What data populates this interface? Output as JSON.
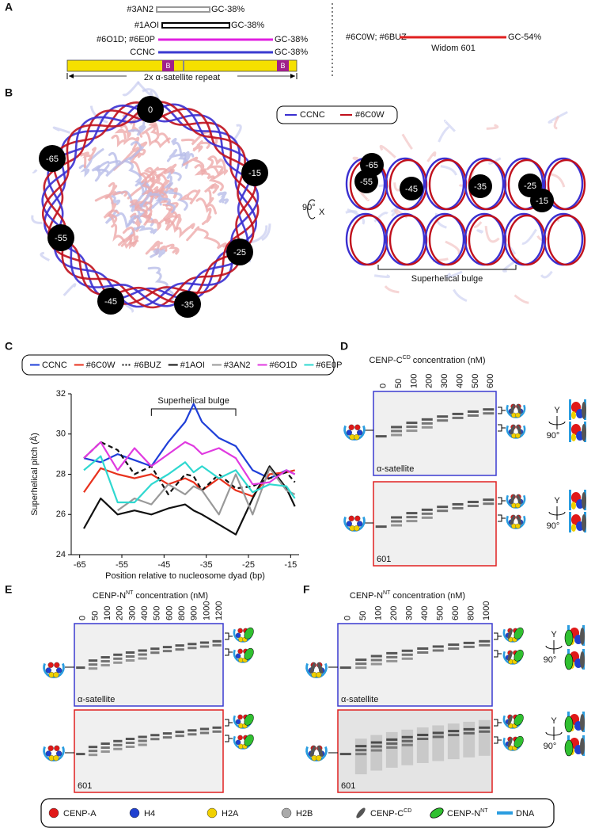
{
  "panel_labels": [
    "A",
    "B",
    "C",
    "D",
    "E",
    "F"
  ],
  "panel_a": {
    "constructs": [
      {
        "name": "#3AN2",
        "gc": "GC-38%"
      },
      {
        "name": "#1AOI",
        "gc": "GC-38%"
      },
      {
        "name": "#6O1D; #6E0P",
        "gc": "GC-38%"
      },
      {
        "name": "CCNC",
        "gc": "GC-38%"
      }
    ],
    "box_label": "B",
    "repeat_label": "2x α-satellite repeat",
    "widom": {
      "name": "#6C0W; #6BUZ",
      "gc": "GC-54%",
      "label": "Widom 601"
    }
  },
  "panel_b": {
    "legend": [
      "CCNC",
      "#6C0W"
    ],
    "top_view_positions": [
      "0",
      "-15",
      "-25",
      "-35",
      "-45",
      "-55",
      "-65"
    ],
    "side_view_positions": [
      "-65",
      "-55",
      "-45",
      "-35",
      "-25",
      "-15"
    ],
    "rotation": "90°",
    "axis": "X",
    "annotation": "Superhelical bulge"
  },
  "chart_data": {
    "type": "line",
    "xlabel": "Position relative to nucleosome dyad (bp)",
    "ylabel": "Superhelical pitch (Å)",
    "annotation": "Superhelical bulge",
    "legend": "top",
    "x": [
      -64,
      -60,
      -56,
      -52,
      -48,
      -44,
      -40,
      -38,
      -36,
      -32,
      -28,
      -24,
      -20,
      -16,
      -14
    ],
    "series": [
      {
        "name": "CCNC",
        "color": "#1f3fd8",
        "values": [
          28.8,
          28.6,
          29.0,
          28.7,
          28.4,
          29.6,
          30.6,
          31.5,
          30.6,
          29.8,
          29.4,
          28.2,
          27.8,
          28.2,
          28.0
        ]
      },
      {
        "name": "#6C0W",
        "color": "#e8321e",
        "values": [
          27.1,
          28.3,
          28.0,
          27.8,
          28.0,
          27.5,
          27.8,
          27.6,
          27.2,
          27.8,
          27.2,
          26.9,
          28.0,
          28.1,
          28.2
        ]
      },
      {
        "name": "#6BUZ",
        "color": "#111111",
        "dash": true,
        "values": [
          28.8,
          29.6,
          29.2,
          28.0,
          28.4,
          27.0,
          28.0,
          27.9,
          27.2,
          28.0,
          27.3,
          27.4,
          27.8,
          28.1,
          27.6
        ]
      },
      {
        "name": "#1AOI",
        "color": "#111111",
        "values": [
          25.3,
          26.8,
          26.0,
          26.2,
          26.0,
          26.3,
          26.5,
          26.2,
          26.0,
          25.5,
          25.0,
          26.8,
          28.4,
          27.3,
          26.4
        ]
      },
      {
        "name": "#3AN2",
        "color": "#999999",
        "values": [
          null,
          null,
          26.2,
          26.8,
          26.5,
          27.5,
          27.0,
          27.4,
          27.2,
          26.0,
          28.0,
          26.0,
          28.3,
          27.2,
          27.0
        ]
      },
      {
        "name": "#6O1D",
        "color": "#e03ae0",
        "values": [
          28.8,
          29.6,
          28.2,
          29.3,
          28.4,
          29.0,
          29.6,
          29.4,
          29.0,
          29.3,
          28.8,
          27.5,
          27.6,
          28.2,
          28.0
        ]
      },
      {
        "name": "#6E0P",
        "color": "#2fd8d0",
        "values": [
          28.2,
          28.9,
          26.6,
          26.6,
          27.5,
          28.0,
          28.6,
          28.1,
          28.4,
          27.8,
          28.2,
          27.1,
          27.5,
          27.4,
          26.8
        ]
      }
    ],
    "xlim": [
      -67,
      -13
    ],
    "xticks": [
      -65,
      -55,
      -45,
      -35,
      -25,
      -15
    ],
    "ylim": [
      24,
      32
    ],
    "yticks": [
      24,
      26,
      28,
      30,
      32
    ]
  },
  "panel_d": {
    "title": {
      "prefix": "CENP-C",
      "sup": "CD",
      "suffix": "concentration (nM)"
    },
    "lanes": [
      "0",
      "50",
      "100",
      "200",
      "300",
      "400",
      "500",
      "600"
    ],
    "gels": [
      "α-satellite",
      "601"
    ],
    "rotation_axis": "Y",
    "rotation": "90°"
  },
  "panel_e": {
    "title": {
      "prefix": "CENP-N",
      "sup": "NT",
      "suffix": "concentration (nM)"
    },
    "lanes": [
      "0",
      "50",
      "100",
      "200",
      "300",
      "400",
      "500",
      "600",
      "800",
      "900",
      "1000",
      "1200"
    ],
    "gels": [
      "α-satellite",
      "601"
    ]
  },
  "panel_f": {
    "title": {
      "prefix": "CENP-N",
      "sup": "NT",
      "suffix": "concentration (nM)"
    },
    "lanes": [
      "0",
      "50",
      "100",
      "200",
      "300",
      "400",
      "500",
      "600",
      "800",
      "1000"
    ],
    "gels": [
      "α-satellite",
      "601"
    ],
    "rotation_axis": "Y",
    "rotation": "90°"
  },
  "legend": [
    {
      "label": "CENP-A"
    },
    {
      "label": "H4"
    },
    {
      "label": "H2A"
    },
    {
      "label": "H2B"
    },
    {
      "label": "CENP-C",
      "sup": "CD"
    },
    {
      "label": "CENP-N",
      "sup": "NT"
    },
    {
      "label": "DNA"
    }
  ]
}
